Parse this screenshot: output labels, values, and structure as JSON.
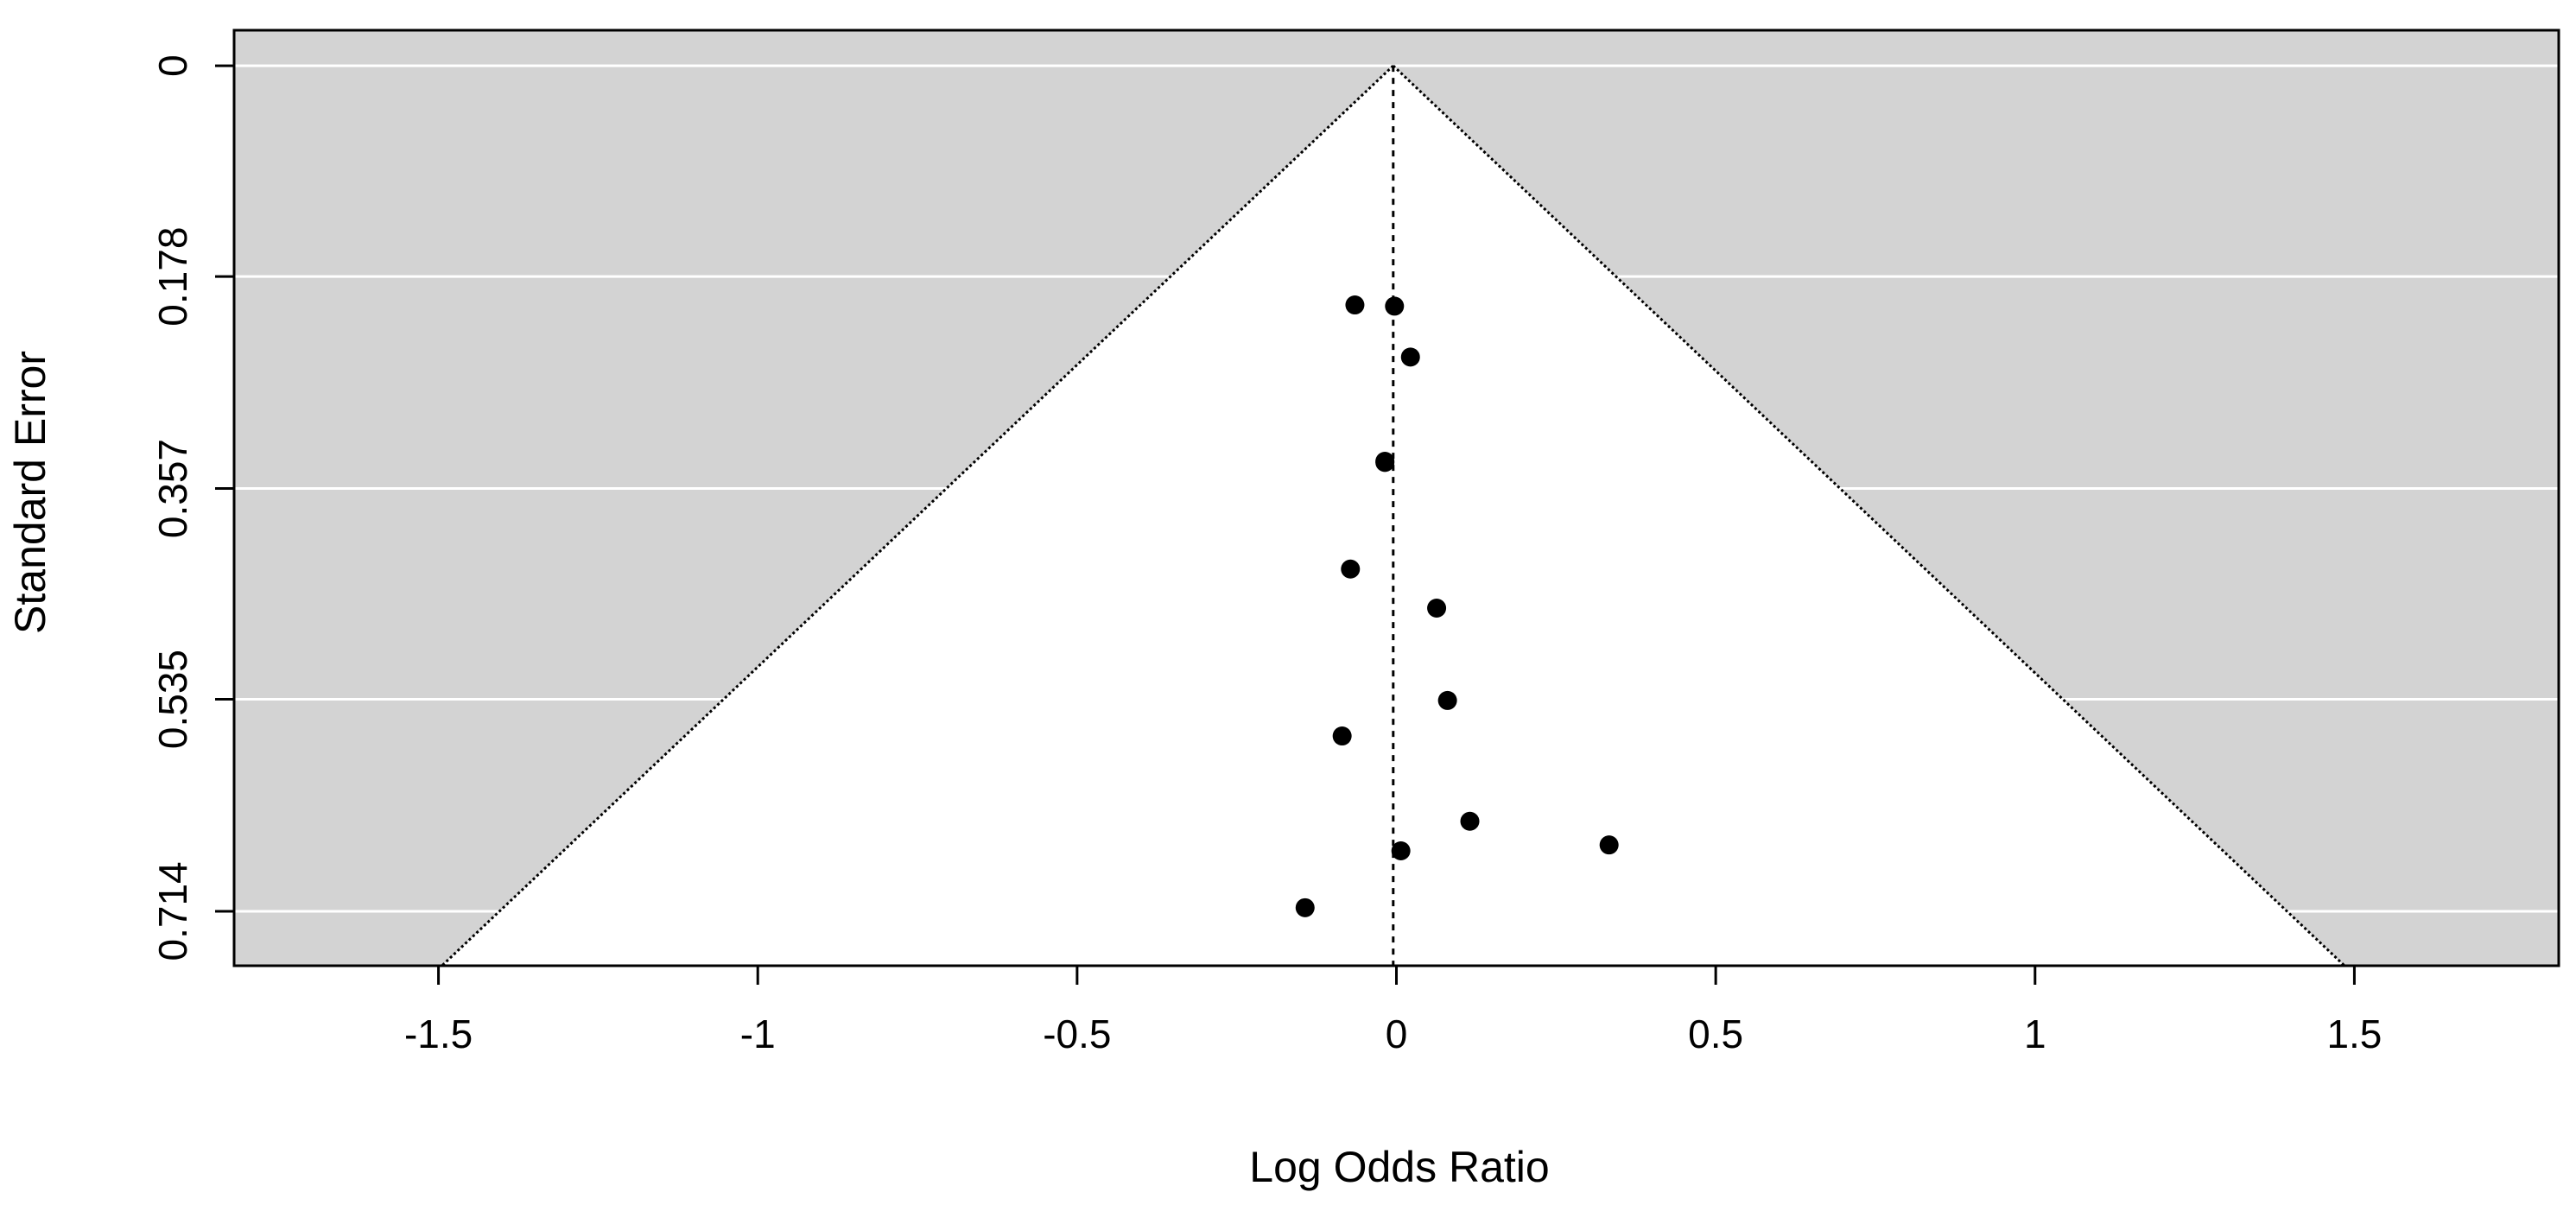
{
  "chart_data": {
    "type": "scatter",
    "subtype": "funnel-plot",
    "title": "",
    "xlabel": "Log Odds Ratio",
    "ylabel": "Standard Error",
    "xlim": [
      -1.82,
      1.82
    ],
    "ylim": [
      0.76,
      -0.03
    ],
    "y_inverted": true,
    "x_ticks": [
      -1.5,
      -1,
      -0.5,
      0,
      0.5,
      1,
      1.5
    ],
    "x_tick_labels": [
      "-1.5",
      "-1",
      "-0.5",
      "0",
      "0.5",
      "1",
      "1.5"
    ],
    "y_ticks": [
      0,
      0.178,
      0.357,
      0.535,
      0.714
    ],
    "y_tick_labels": [
      "0",
      "0.178",
      "0.357",
      "0.535",
      "0.714"
    ],
    "grid": true,
    "background_color": "#d3d3d3",
    "funnel_fill": "#ffffff",
    "point_color": "#000000",
    "center_estimate": -0.005,
    "funnel_multiplier": 1.96,
    "points": [
      {
        "x": -0.065,
        "y": 0.202
      },
      {
        "x": -0.003,
        "y": 0.203
      },
      {
        "x": 0.022,
        "y": 0.246
      },
      {
        "x": -0.018,
        "y": 0.334
      },
      {
        "x": -0.018,
        "y": 0.335
      },
      {
        "x": -0.072,
        "y": 0.425
      },
      {
        "x": 0.063,
        "y": 0.458
      },
      {
        "x": 0.08,
        "y": 0.536
      },
      {
        "x": -0.085,
        "y": 0.566
      },
      {
        "x": 0.115,
        "y": 0.638
      },
      {
        "x": 0.333,
        "y": 0.658
      },
      {
        "x": 0.007,
        "y": 0.663
      },
      {
        "x": -0.143,
        "y": 0.711
      }
    ]
  }
}
